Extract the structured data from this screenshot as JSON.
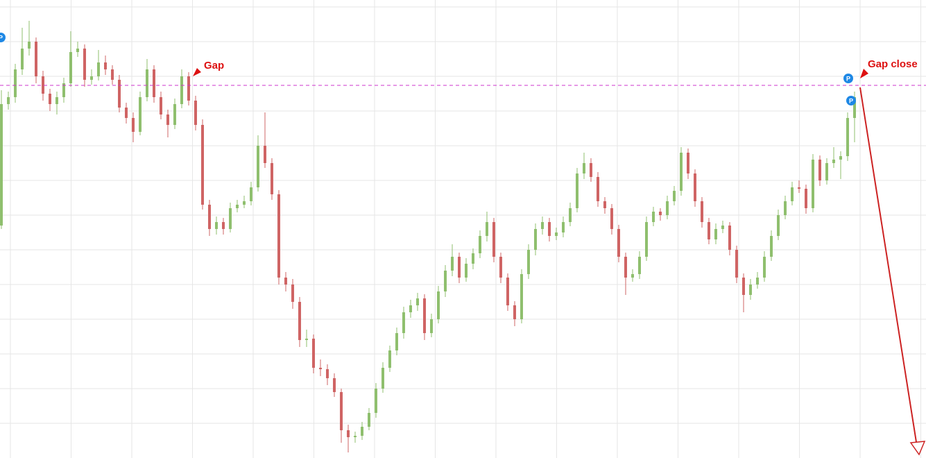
{
  "chart_data": {
    "type": "candlestick",
    "up_color": "#8fbf6e",
    "down_color": "#cf6464",
    "ylim": [
      0,
      660
    ],
    "reference_line": 537,
    "reference_color": "#cc33cc",
    "annotations": [
      "Gap",
      "Gap close"
    ],
    "markers": [
      "P",
      "P",
      "P"
    ],
    "ohlc": [
      [
        335,
        530,
        330,
        510
      ],
      [
        510,
        528,
        502,
        520
      ],
      [
        520,
        568,
        512,
        560
      ],
      [
        560,
        620,
        552,
        590
      ],
      [
        590,
        630,
        580,
        600
      ],
      [
        600,
        606,
        540,
        550
      ],
      [
        550,
        558,
        515,
        525
      ],
      [
        525,
        532,
        500,
        510
      ],
      [
        510,
        528,
        495,
        520
      ],
      [
        520,
        548,
        512,
        540
      ],
      [
        540,
        615,
        535,
        585
      ],
      [
        585,
        600,
        578,
        590
      ],
      [
        590,
        596,
        535,
        545
      ],
      [
        545,
        560,
        538,
        550
      ],
      [
        550,
        588,
        544,
        570
      ],
      [
        570,
        580,
        552,
        560
      ],
      [
        560,
        566,
        538,
        545
      ],
      [
        545,
        552,
        498,
        505
      ],
      [
        505,
        512,
        482,
        490
      ],
      [
        490,
        498,
        455,
        470
      ],
      [
        470,
        528,
        465,
        520
      ],
      [
        520,
        575,
        514,
        560
      ],
      [
        560,
        566,
        512,
        520
      ],
      [
        520,
        528,
        488,
        495
      ],
      [
        495,
        502,
        462,
        480
      ],
      [
        480,
        518,
        474,
        510
      ],
      [
        510,
        560,
        504,
        550
      ],
      [
        550,
        556,
        508,
        515
      ],
      [
        515,
        522,
        472,
        480
      ],
      [
        480,
        488,
        358,
        365
      ],
      [
        365,
        372,
        320,
        330
      ],
      [
        330,
        348,
        322,
        340
      ],
      [
        340,
        346,
        322,
        330
      ],
      [
        330,
        368,
        325,
        360
      ],
      [
        360,
        372,
        354,
        365
      ],
      [
        365,
        378,
        360,
        370
      ],
      [
        370,
        398,
        364,
        390
      ],
      [
        390,
        465,
        384,
        450
      ],
      [
        450,
        498,
        418,
        425
      ],
      [
        425,
        432,
        372,
        380
      ],
      [
        380,
        386,
        250,
        260
      ],
      [
        260,
        268,
        240,
        250
      ],
      [
        250,
        258,
        215,
        225
      ],
      [
        225,
        232,
        160,
        170
      ],
      [
        170,
        185,
        160,
        172
      ],
      [
        172,
        178,
        122,
        130
      ],
      [
        130,
        142,
        118,
        128
      ],
      [
        128,
        135,
        105,
        115
      ],
      [
        115,
        122,
        88,
        95
      ],
      [
        95,
        100,
        22,
        40
      ],
      [
        40,
        48,
        8,
        30
      ],
      [
        30,
        38,
        22,
        32
      ],
      [
        32,
        52,
        26,
        45
      ],
      [
        45,
        72,
        40,
        65
      ],
      [
        65,
        108,
        58,
        100
      ],
      [
        100,
        138,
        94,
        130
      ],
      [
        130,
        162,
        124,
        155
      ],
      [
        155,
        188,
        148,
        180
      ],
      [
        180,
        218,
        172,
        210
      ],
      [
        210,
        228,
        202,
        220
      ],
      [
        220,
        238,
        212,
        230
      ],
      [
        230,
        236,
        170,
        180
      ],
      [
        180,
        208,
        174,
        200
      ],
      [
        200,
        248,
        194,
        240
      ],
      [
        240,
        278,
        232,
        270
      ],
      [
        270,
        308,
        262,
        290
      ],
      [
        290,
        296,
        252,
        260
      ],
      [
        260,
        288,
        254,
        280
      ],
      [
        280,
        302,
        272,
        295
      ],
      [
        295,
        328,
        288,
        320
      ],
      [
        320,
        355,
        312,
        340
      ],
      [
        340,
        346,
        282,
        290
      ],
      [
        290,
        296,
        252,
        260
      ],
      [
        260,
        266,
        212,
        220
      ],
      [
        220,
        226,
        190,
        200
      ],
      [
        200,
        272,
        194,
        265
      ],
      [
        265,
        308,
        258,
        300
      ],
      [
        300,
        338,
        292,
        330
      ],
      [
        330,
        348,
        322,
        340
      ],
      [
        340,
        346,
        312,
        320
      ],
      [
        320,
        332,
        314,
        325
      ],
      [
        325,
        348,
        318,
        340
      ],
      [
        340,
        368,
        334,
        360
      ],
      [
        360,
        418,
        354,
        410
      ],
      [
        410,
        440,
        402,
        425
      ],
      [
        425,
        432,
        398,
        405
      ],
      [
        405,
        412,
        362,
        370
      ],
      [
        370,
        376,
        352,
        360
      ],
      [
        360,
        366,
        322,
        330
      ],
      [
        330,
        336,
        282,
        290
      ],
      [
        290,
        296,
        235,
        260
      ],
      [
        260,
        272,
        254,
        265
      ],
      [
        265,
        298,
        258,
        290
      ],
      [
        290,
        348,
        284,
        340
      ],
      [
        340,
        362,
        334,
        355
      ],
      [
        355,
        360,
        342,
        350
      ],
      [
        350,
        378,
        344,
        370
      ],
      [
        370,
        392,
        364,
        385
      ],
      [
        385,
        448,
        378,
        440
      ],
      [
        440,
        446,
        402,
        410
      ],
      [
        410,
        416,
        362,
        370
      ],
      [
        370,
        376,
        332,
        340
      ],
      [
        340,
        346,
        308,
        315
      ],
      [
        315,
        338,
        308,
        330
      ],
      [
        330,
        342,
        324,
        335
      ],
      [
        335,
        340,
        292,
        300
      ],
      [
        300,
        306,
        252,
        260
      ],
      [
        260,
        266,
        210,
        235
      ],
      [
        235,
        258,
        228,
        250
      ],
      [
        250,
        268,
        244,
        260
      ],
      [
        260,
        298,
        254,
        290
      ],
      [
        290,
        328,
        284,
        320
      ],
      [
        320,
        358,
        314,
        350
      ],
      [
        350,
        378,
        344,
        370
      ],
      [
        370,
        398,
        364,
        390
      ],
      [
        390,
        400,
        382,
        388
      ],
      [
        388,
        394,
        352,
        360
      ],
      [
        360,
        438,
        354,
        430
      ],
      [
        430,
        436,
        392,
        400
      ],
      [
        400,
        432,
        394,
        425
      ],
      [
        425,
        448,
        418,
        430
      ],
      [
        430,
        442,
        402,
        435
      ],
      [
        435,
        498,
        428,
        490
      ],
      [
        490,
        528,
        455,
        520
      ]
    ]
  }
}
